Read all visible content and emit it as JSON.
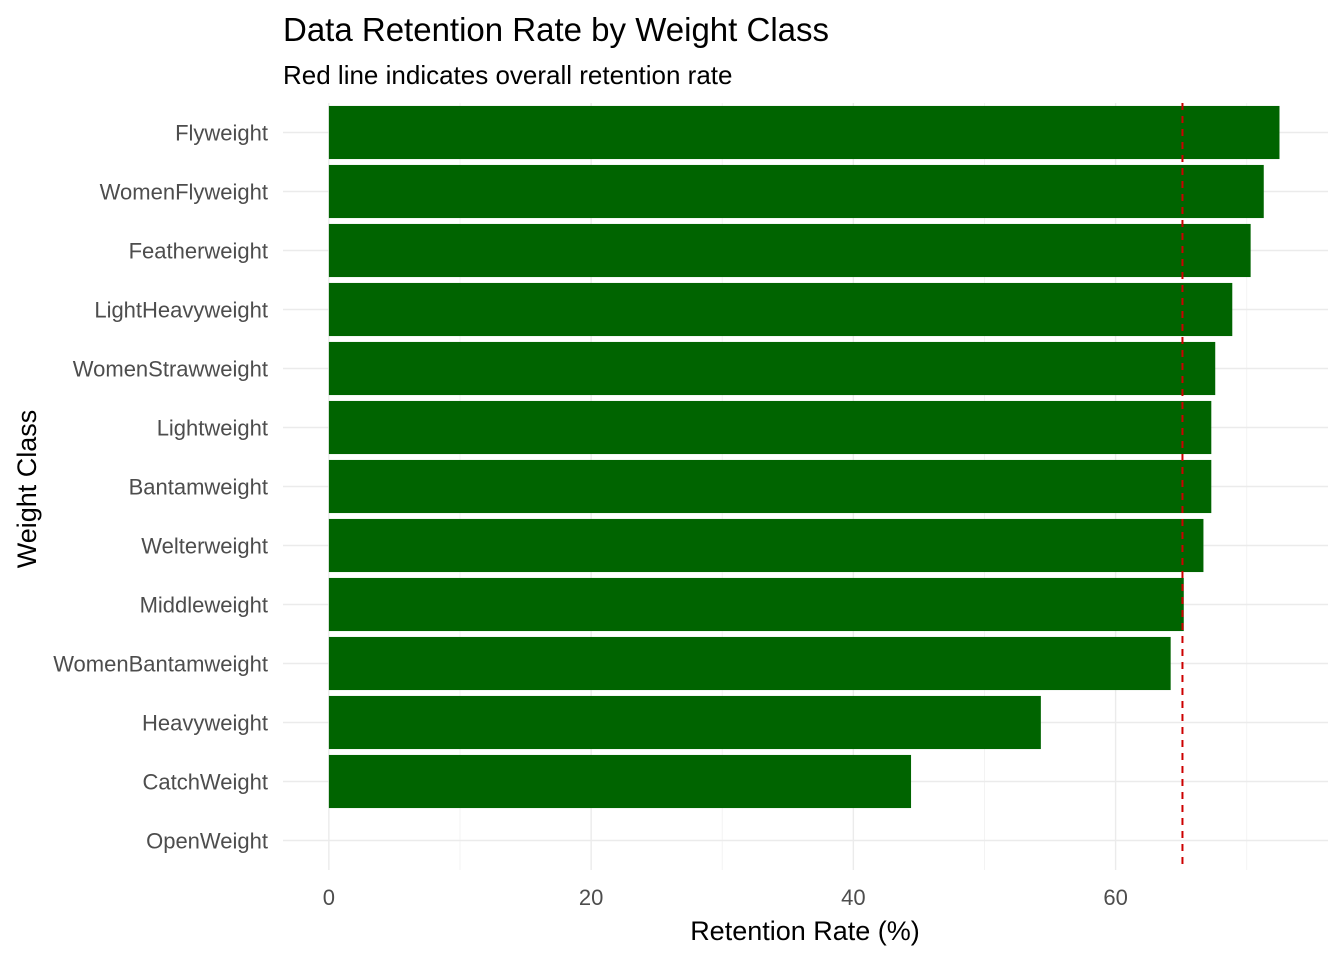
{
  "chart_data": {
    "type": "bar",
    "orientation": "horizontal",
    "title": "Data Retention Rate by Weight Class",
    "subtitle": "Red line indicates overall retention rate",
    "xlabel": "Retention Rate (%)",
    "ylabel": "Weight Class",
    "categories": [
      "Flyweight",
      "WomenFlyweight",
      "Featherweight",
      "LightHeavyweight",
      "WomenStrawweight",
      "Lightweight",
      "Bantamweight",
      "Welterweight",
      "Middleweight",
      "WomenBantamweight",
      "Heavyweight",
      "CatchWeight",
      "OpenWeight"
    ],
    "values": [
      72.5,
      71.3,
      70.3,
      68.9,
      67.6,
      67.3,
      67.3,
      66.7,
      65.2,
      64.2,
      54.3,
      44.4,
      0
    ],
    "xlim": [
      -3.5,
      76.2
    ],
    "xticks": [
      0,
      20,
      40,
      60
    ],
    "reference_line": {
      "value": 65.1,
      "color": "#cc0000",
      "style": "dashed"
    },
    "bar_color": "#006400",
    "grid": true,
    "legend": "none"
  }
}
